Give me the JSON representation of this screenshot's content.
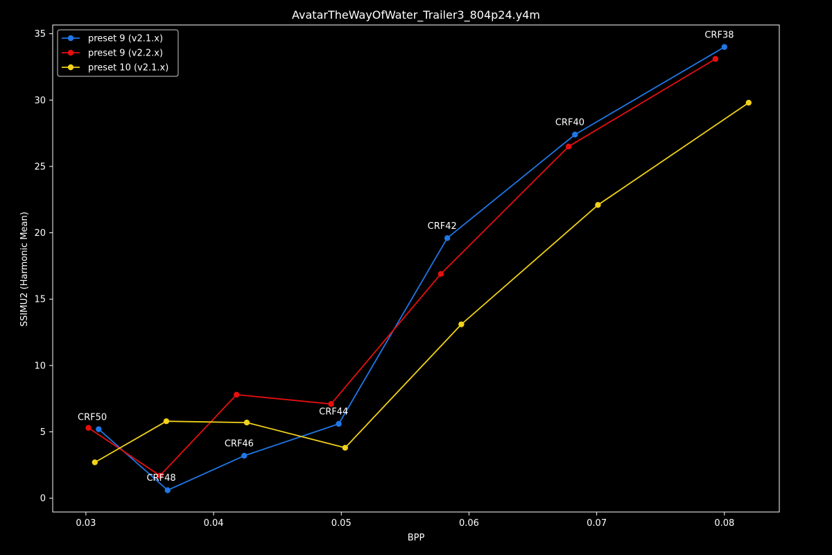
{
  "chart_data": {
    "type": "line",
    "title": "AvatarTheWayOfWater_Trailer3_804p24.y4m",
    "xlabel": "BPP",
    "ylabel": "SSIMU2 (Harmonic Mean)",
    "xlim": [
      0.0274,
      0.0843
    ],
    "ylim": [
      -1.04,
      35.66
    ],
    "xticks": [
      "0.03",
      "0.04",
      "0.05",
      "0.06",
      "0.07",
      "0.08"
    ],
    "yticks": [
      "0",
      "5",
      "10",
      "15",
      "20",
      "25",
      "30",
      "35"
    ],
    "grid": false,
    "legend_position": "top-left",
    "series": [
      {
        "name": "preset 9 (v2.1.x)",
        "color": "#1f77e6",
        "x": [
          0.031,
          0.0364,
          0.0424,
          0.0498,
          0.0583,
          0.0683,
          0.08
        ],
        "y": [
          5.2,
          0.6,
          3.2,
          5.6,
          19.6,
          27.4,
          34.0
        ]
      },
      {
        "name": "preset 9 (v2.2.x)",
        "color": "#e60f0f",
        "x": [
          0.0302,
          0.0358,
          0.0418,
          0.0492,
          0.0578,
          0.0678,
          0.0793
        ],
        "y": [
          5.3,
          1.7,
          7.8,
          7.1,
          16.9,
          26.5,
          33.1
        ]
      },
      {
        "name": "preset 10 (v2.1.x)",
        "color": "#f2d21a",
        "x": [
          0.0307,
          0.0363,
          0.0426,
          0.0503,
          0.0594,
          0.0701,
          0.0819
        ],
        "y": [
          2.7,
          5.8,
          5.7,
          3.8,
          13.1,
          22.1,
          29.8
        ]
      }
    ],
    "annotations": [
      {
        "text": "CRF50",
        "x": 0.0305,
        "y": 5.9
      },
      {
        "text": "CRF48",
        "x": 0.0359,
        "y": 1.3
      },
      {
        "text": "CRF46",
        "x": 0.042,
        "y": 3.9
      },
      {
        "text": "CRF44",
        "x": 0.0494,
        "y": 6.3
      },
      {
        "text": "CRF42",
        "x": 0.0579,
        "y": 20.3
      },
      {
        "text": "CRF40",
        "x": 0.0679,
        "y": 28.1
      },
      {
        "text": "CRF38",
        "x": 0.0796,
        "y": 34.7
      }
    ]
  }
}
